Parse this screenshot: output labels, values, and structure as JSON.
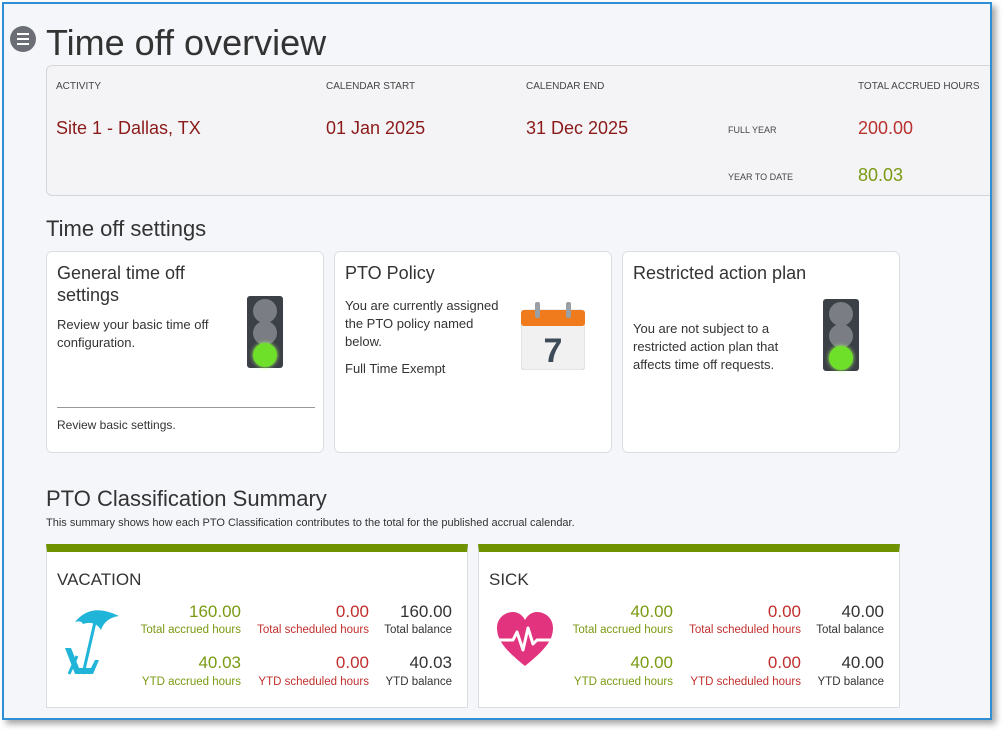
{
  "page": {
    "title": "Time off overview"
  },
  "summary": {
    "headers": {
      "activity": "ACTIVITY",
      "calendar_start": "CALENDAR START",
      "calendar_end": "CALENDAR END",
      "total_accrued": "TOTAL ACCRUED HOURS"
    },
    "activity": "Site 1 - Dallas, TX",
    "calendar_start": "01 Jan 2025",
    "calendar_end": "31 Dec 2025",
    "full_year_label": "FULL YEAR",
    "full_year_value": "200.00",
    "ytd_label": "YEAR TO DATE",
    "ytd_value": "80.03"
  },
  "settings": {
    "title": "Time off settings",
    "general": {
      "title": "General time off settings",
      "desc": "Review your basic time off configuration.",
      "footer": "Review basic settings.",
      "icon": "traffic-light-green-icon"
    },
    "pto_policy": {
      "title": "PTO Policy",
      "desc": "You are currently assigned the PTO policy named below.",
      "policy_name": "Full Time Exempt",
      "icon": "calendar-icon",
      "calendar_day": "7"
    },
    "restricted": {
      "title": "Restricted action plan",
      "desc": "You are not subject to a restricted action plan that affects time off requests.",
      "icon": "traffic-light-green-icon"
    }
  },
  "classification": {
    "title": "PTO Classification Summary",
    "desc": "This summary shows how each PTO Classification contributes to the total for the published accrual calendar.",
    "accent_color": "#6f9200",
    "items": [
      {
        "name": "VACATION",
        "icon": "beach-umbrella-chair-icon",
        "total_accrued": "160.00",
        "total_accrued_label": "Total accrued hours",
        "total_scheduled": "0.00",
        "total_scheduled_label": "Total scheduled hours",
        "total_balance": "160.00",
        "total_balance_label": "Total balance",
        "ytd_accrued": "40.03",
        "ytd_accrued_label": "YTD accrued hours",
        "ytd_scheduled": "0.00",
        "ytd_scheduled_label": "YTD scheduled hours",
        "ytd_balance": "40.03",
        "ytd_balance_label": "YTD balance"
      },
      {
        "name": "SICK",
        "icon": "heart-pulse-icon",
        "total_accrued": "40.00",
        "total_accrued_label": "Total accrued hours",
        "total_scheduled": "0.00",
        "total_scheduled_label": "Total scheduled hours",
        "total_balance": "40.00",
        "total_balance_label": "Total balance",
        "ytd_accrued": "40.00",
        "ytd_accrued_label": "YTD accrued hours",
        "ytd_scheduled": "0.00",
        "ytd_scheduled_label": "YTD scheduled hours",
        "ytd_balance": "40.00",
        "ytd_balance_label": "YTD balance"
      }
    ]
  }
}
